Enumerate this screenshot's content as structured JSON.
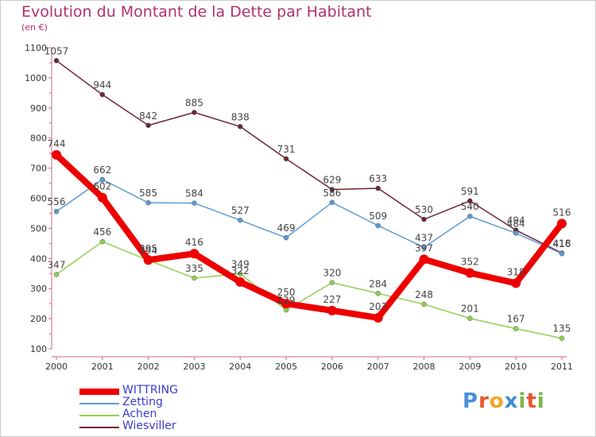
{
  "chart_data": {
    "type": "line",
    "title": "Evolution du Montant de la Dette par Habitant",
    "subtitle": "(en €)",
    "x": [
      "2000",
      "2001",
      "2002",
      "2003",
      "2004",
      "2005",
      "2006",
      "2007",
      "2008",
      "2009",
      "2010",
      "2011"
    ],
    "ylim": [
      100,
      1100
    ],
    "yticks": [
      100,
      200,
      300,
      400,
      500,
      600,
      700,
      800,
      900,
      1000,
      1100
    ],
    "grid": false,
    "legend_position": "bottom-left",
    "series": [
      {
        "name": "WITTRING",
        "color": "#ee0000",
        "values": [
          744,
          602,
          395,
          416,
          322,
          250,
          227,
          203,
          397,
          352,
          318,
          516
        ]
      },
      {
        "name": "Zetting",
        "color": "#5b9bd5",
        "values": [
          556,
          662,
          585,
          584,
          527,
          469,
          586,
          509,
          437,
          540,
          484,
          416
        ]
      },
      {
        "name": "Achen",
        "color": "#92d050",
        "values": [
          347,
          456,
          394,
          335,
          349,
          229,
          320,
          284,
          248,
          201,
          167,
          135
        ]
      },
      {
        "name": "Wiesviller",
        "color": "#6e2632",
        "values": [
          1057,
          944,
          842,
          885,
          838,
          731,
          629,
          633,
          530,
          591,
          494,
          418
        ]
      }
    ]
  },
  "logo": {
    "text": "Proxiti",
    "colors": [
      "#4a90d9",
      "#e8542a",
      "#f2a52a",
      "#3a8cd0",
      "#7ab648",
      "#e8542a",
      "#7ab648"
    ]
  }
}
